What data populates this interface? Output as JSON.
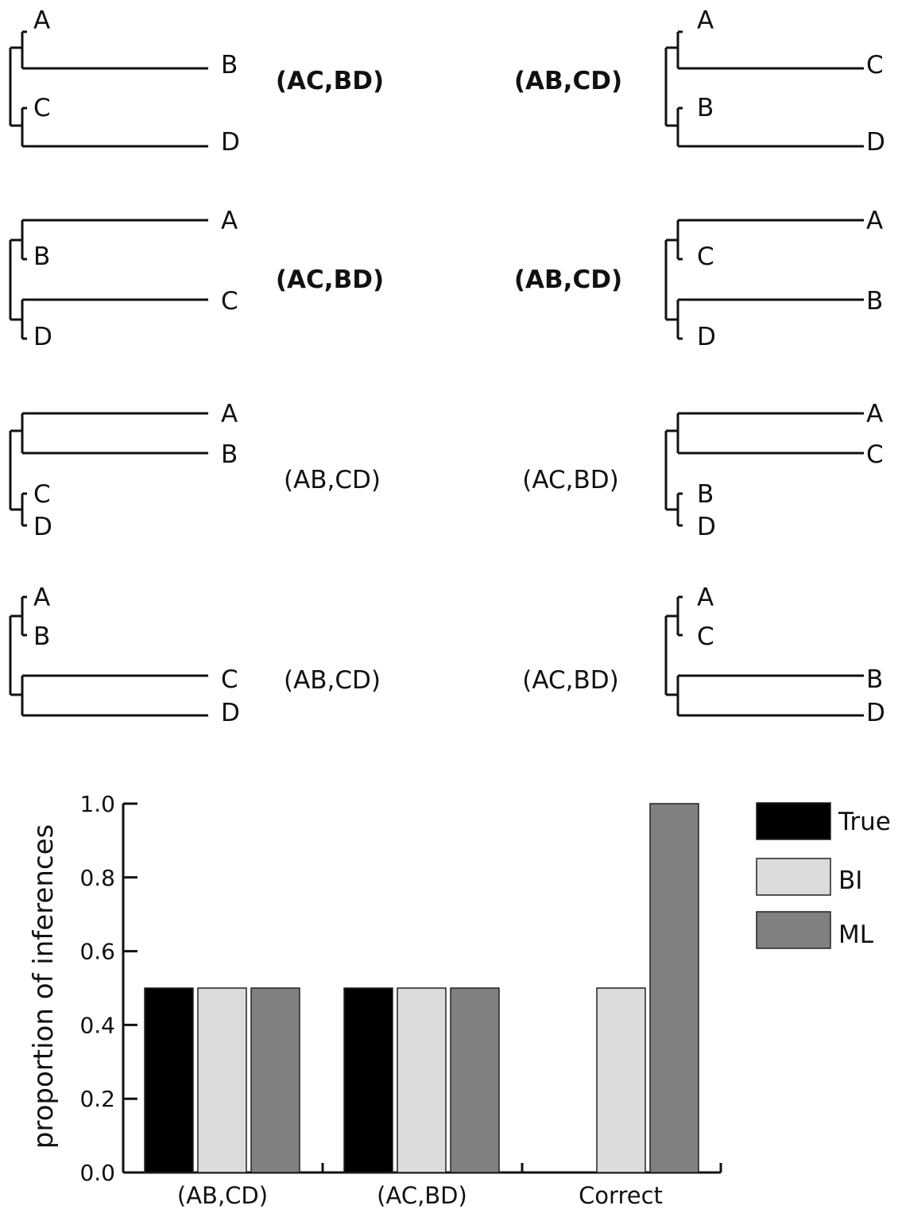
{
  "trees": [
    {
      "id": "tree-1-left",
      "type": "asym",
      "tips": [
        "A",
        "B",
        "C",
        "D"
      ],
      "label": "(AC,BD)",
      "bold": true
    },
    {
      "id": "tree-1-right",
      "type": "asym",
      "tips": [
        "A",
        "C",
        "B",
        "D"
      ],
      "label": "(AB,CD)",
      "bold": true
    },
    {
      "id": "tree-2-left",
      "type": "asym_rev",
      "tips": [
        "A",
        "B",
        "C",
        "D"
      ],
      "label": "(AC,BD)",
      "bold": true
    },
    {
      "id": "tree-2-right",
      "type": "asym_rev",
      "tips": [
        "A",
        "C",
        "B",
        "D"
      ],
      "label": "(AB,CD)",
      "bold": true
    },
    {
      "id": "tree-3-left",
      "type": "long_top",
      "tips": [
        "A",
        "B",
        "C",
        "D"
      ],
      "label": "(AB,CD)",
      "bold": false
    },
    {
      "id": "tree-3-right",
      "type": "long_top",
      "tips": [
        "A",
        "C",
        "B",
        "D"
      ],
      "label": "(AC,BD)",
      "bold": false
    },
    {
      "id": "tree-4-left",
      "type": "long_bottom",
      "tips": [
        "A",
        "B",
        "C",
        "D"
      ],
      "label": "(AB,CD)",
      "bold": false
    },
    {
      "id": "tree-4-right",
      "type": "long_bottom",
      "tips": [
        "A",
        "C",
        "B",
        "D"
      ],
      "label": "(AC,BD)",
      "bold": false
    }
  ],
  "chart_data": {
    "type": "bar",
    "categories": [
      "(AB,CD)",
      "(AC,BD)",
      "Correct"
    ],
    "series": [
      {
        "name": "True",
        "values": [
          0.5,
          0.5,
          0.0
        ],
        "color": "#000000"
      },
      {
        "name": "BI",
        "values": [
          0.5,
          0.5,
          0.5
        ],
        "color": "#dcdcdc"
      },
      {
        "name": "ML",
        "values": [
          0.5,
          0.5,
          1.0
        ],
        "color": "#808080"
      }
    ],
    "ylabel": "proportion of inferences",
    "ylim": [
      0,
      1.0
    ],
    "yticks": [
      "0.0",
      "0.2",
      "0.4",
      "0.6",
      "0.8",
      "1.0"
    ],
    "legend_position": "top-right",
    "grid": false
  }
}
